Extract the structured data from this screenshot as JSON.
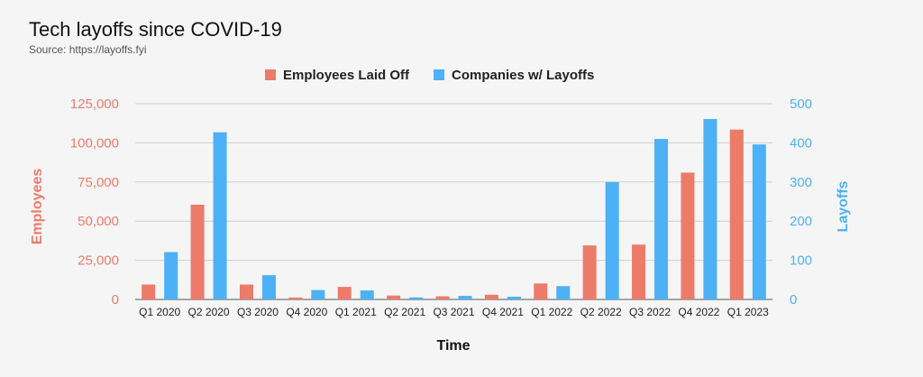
{
  "chart_data": {
    "type": "bar",
    "title": "Tech layoffs since COVID-19",
    "subtitle": "Source: https://layoffs.fyi",
    "xlabel": "Time",
    "ylabel_left": "Employees",
    "ylabel_right": "Layoffs",
    "categories": [
      "Q1 2020",
      "Q2 2020",
      "Q3 2020",
      "Q4 2020",
      "Q1 2021",
      "Q2 2021",
      "Q3 2021",
      "Q4 2021",
      "Q1 2022",
      "Q2 2022",
      "Q3 2022",
      "Q4 2022",
      "Q1 2023"
    ],
    "series": [
      {
        "name": "Employees Laid Off",
        "axis": "left",
        "color": "#ec7b6a",
        "values": [
          9500,
          60500,
          9500,
          1200,
          8000,
          2500,
          2000,
          3000,
          10200,
          34500,
          35000,
          81000,
          108500
        ]
      },
      {
        "name": "Companies w/ Layoffs",
        "axis": "right",
        "color": "#4cb2f5",
        "values": [
          121,
          427,
          62,
          24,
          23,
          5,
          9,
          7,
          34,
          300,
          410,
          461,
          396
        ]
      }
    ],
    "ylim_left": [
      0,
      125000
    ],
    "ylim_right": [
      0,
      500
    ],
    "left_ticks": [
      "0",
      "25,000",
      "50,000",
      "75,000",
      "100,000",
      "125,000"
    ],
    "right_ticks": [
      "0",
      "100",
      "200",
      "300",
      "400",
      "500"
    ],
    "legend_position": "top-center",
    "grid": true
  }
}
